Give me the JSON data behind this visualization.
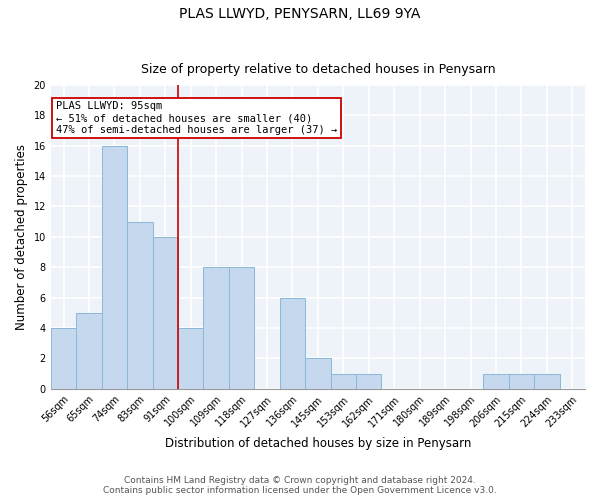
{
  "title": "PLAS LLWYD, PENYSARN, LL69 9YA",
  "subtitle": "Size of property relative to detached houses in Penysarn",
  "xlabel": "Distribution of detached houses by size in Penysarn",
  "ylabel": "Number of detached properties",
  "footnote1": "Contains HM Land Registry data © Crown copyright and database right 2024.",
  "footnote2": "Contains public sector information licensed under the Open Government Licence v3.0.",
  "categories": [
    "56sqm",
    "65sqm",
    "74sqm",
    "83sqm",
    "91sqm",
    "100sqm",
    "109sqm",
    "118sqm",
    "127sqm",
    "136sqm",
    "145sqm",
    "153sqm",
    "162sqm",
    "171sqm",
    "180sqm",
    "189sqm",
    "198sqm",
    "206sqm",
    "215sqm",
    "224sqm",
    "233sqm"
  ],
  "values": [
    4,
    5,
    16,
    11,
    10,
    4,
    8,
    8,
    0,
    6,
    2,
    1,
    1,
    0,
    0,
    0,
    0,
    1,
    1,
    1,
    0
  ],
  "bar_color": "#c5d8ed",
  "bar_edge_color": "#8ab8d8",
  "vline_x_idx": 4.5,
  "vline_color": "#cc0000",
  "annotation_text": "PLAS LLWYD: 95sqm\n← 51% of detached houses are smaller (40)\n47% of semi-detached houses are larger (37) →",
  "annotation_box_color": "white",
  "annotation_box_edge": "#cc0000",
  "ylim": [
    0,
    20
  ],
  "yticks": [
    0,
    2,
    4,
    6,
    8,
    10,
    12,
    14,
    16,
    18,
    20
  ],
  "background_color": "#eef2f9",
  "grid_color": "white",
  "title_fontsize": 10,
  "subtitle_fontsize": 9,
  "xlabel_fontsize": 8.5,
  "ylabel_fontsize": 8.5,
  "tick_fontsize": 7,
  "footnote_fontsize": 6.5,
  "annot_fontsize": 7.5
}
